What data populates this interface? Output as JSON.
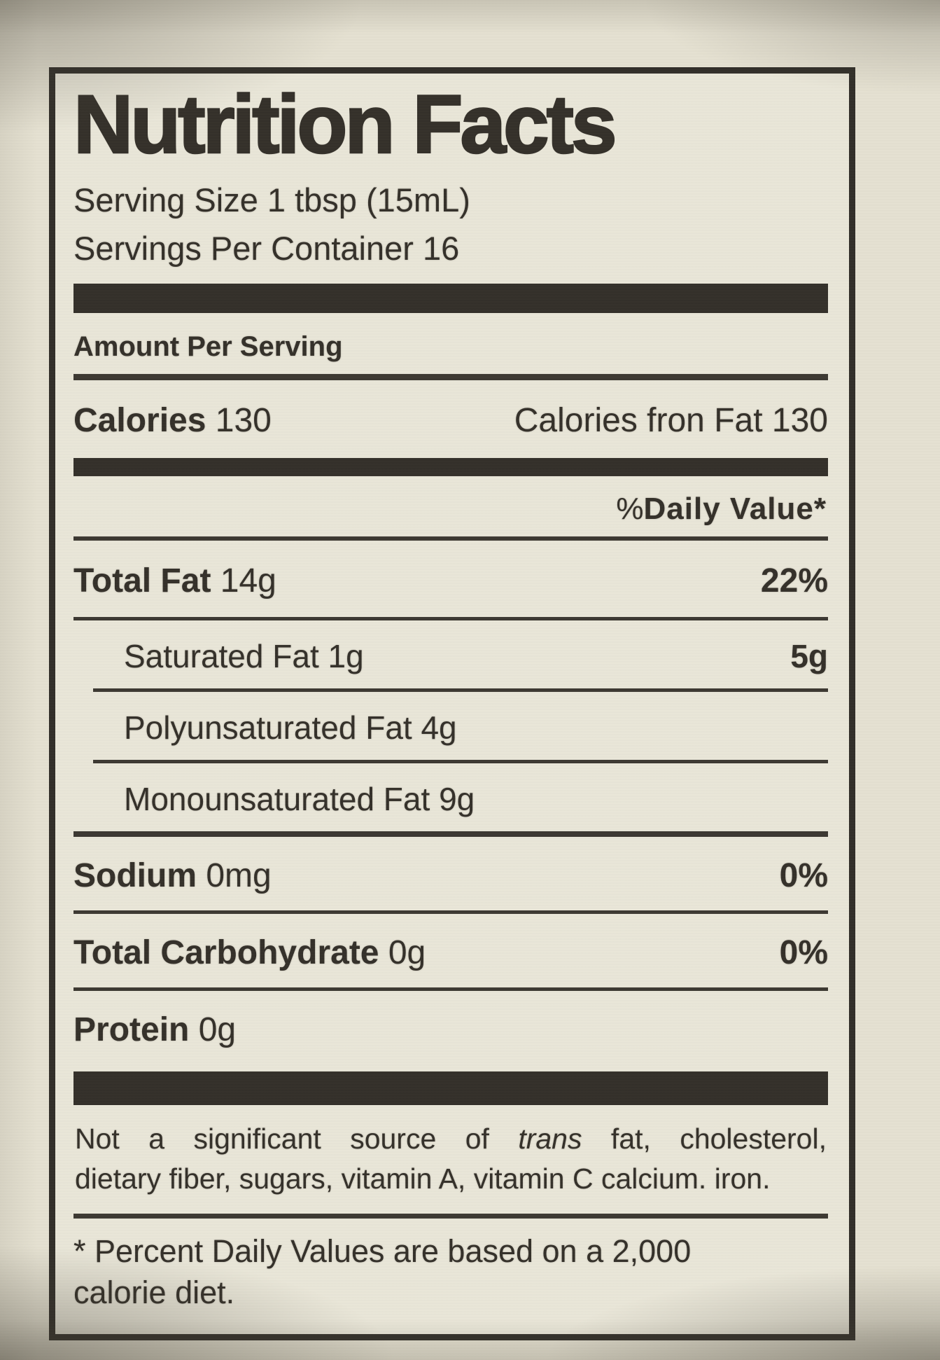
{
  "nutrition_label": {
    "title": "Nutrition Facts",
    "serving_size": "Serving Size 1 tbsp (15mL)",
    "servings_per_container": "Servings Per Container 16",
    "amount_per_serving": "Amount Per Serving",
    "calories": {
      "label": "Calories",
      "value": "130",
      "from_fat_label": "Calories fron Fat",
      "from_fat_value": "130"
    },
    "daily_value_header": {
      "percent_sign": "%",
      "label": "Daily Value*"
    },
    "nutrients": [
      {
        "name": "Total Fat",
        "amount": "14g",
        "daily_value": "22%"
      },
      {
        "name": "Saturated Fat",
        "amount": "1g",
        "daily_value": "5g"
      },
      {
        "name": "Polyunsaturated Fat",
        "amount": "4g",
        "daily_value": ""
      },
      {
        "name": "Monounsaturated Fat",
        "amount": "9g",
        "daily_value": ""
      },
      {
        "name": "Sodium",
        "amount": "0mg",
        "daily_value": "0%"
      },
      {
        "name": "Total Carbohydrate",
        "amount": "0g",
        "daily_value": "0%"
      },
      {
        "name": "Protein",
        "amount": "0g",
        "daily_value": ""
      }
    ],
    "disclaimer": {
      "line1_prefix": "Not a significant source of",
      "line1_italic": "trans",
      "line1_suffix": "fat, cholesterol,",
      "line2": "dietary fiber, sugars, vitamin A, vitamin C calcium. iron."
    },
    "footnote": {
      "line1": "* Percent Daily Values are based on a 2,000",
      "line2": "calorie diet."
    },
    "colors": {
      "label_background": "#e9e6d8",
      "photo_background": "#e5e1d1",
      "ink": "#35312a"
    }
  }
}
